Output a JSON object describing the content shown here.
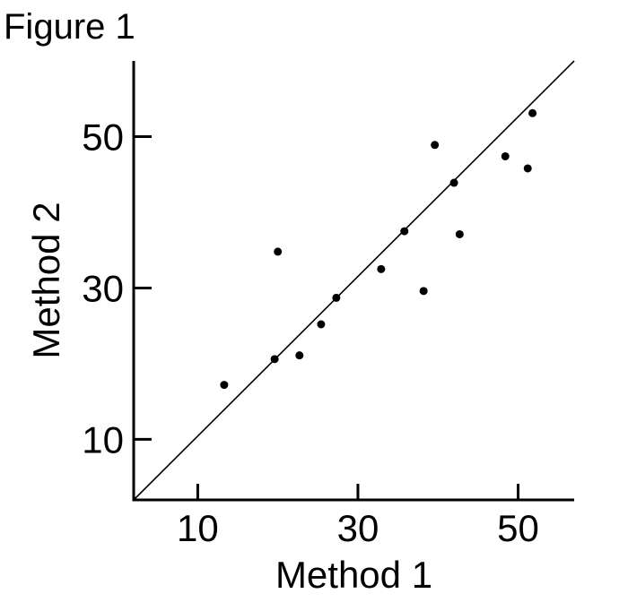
{
  "figure_label": "Figure 1",
  "chart_data": {
    "type": "scatter",
    "xlabel": "Method 1",
    "ylabel": "Method 2",
    "xlim": [
      2,
      57
    ],
    "ylim": [
      2,
      60
    ],
    "x_ticks": [
      10,
      30,
      50
    ],
    "y_ticks": [
      10,
      30,
      50
    ],
    "x_tick_labels": [
      "10",
      "30",
      "50"
    ],
    "y_tick_labels": [
      "10",
      "30",
      "50"
    ],
    "grid": false,
    "reference_line": {
      "type": "identity",
      "from": [
        2,
        2
      ],
      "to": [
        57,
        60
      ]
    },
    "points": [
      {
        "x": 13.3,
        "y": 17.2
      },
      {
        "x": 19.6,
        "y": 20.6
      },
      {
        "x": 20.0,
        "y": 34.8
      },
      {
        "x": 22.7,
        "y": 21.1
      },
      {
        "x": 25.4,
        "y": 25.2
      },
      {
        "x": 27.3,
        "y": 28.7
      },
      {
        "x": 32.9,
        "y": 32.5
      },
      {
        "x": 35.8,
        "y": 37.5
      },
      {
        "x": 38.2,
        "y": 29.6
      },
      {
        "x": 39.6,
        "y": 48.9
      },
      {
        "x": 42.0,
        "y": 43.9
      },
      {
        "x": 42.7,
        "y": 37.1
      },
      {
        "x": 48.4,
        "y": 47.4
      },
      {
        "x": 51.2,
        "y": 45.8
      },
      {
        "x": 51.8,
        "y": 53.1
      }
    ]
  }
}
